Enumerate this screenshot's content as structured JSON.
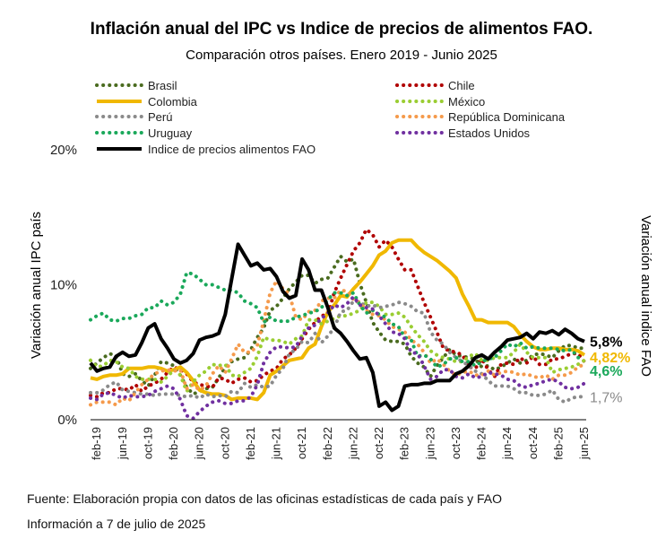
{
  "chart_data": {
    "type": "line",
    "title": "Inflación anual del IPC vs Indice de precios de alimentos FAO.",
    "subtitle": "Comparación otros países. Enero 2019 - Junio 2025",
    "ylabel_left": "Variación anual IPC país",
    "ylabel_right": "Variación anual indice FAO",
    "y_ticks": [
      "0%",
      "10%",
      "20%"
    ],
    "ylim": [
      0,
      20
    ],
    "x_tick_labels": [
      "feb-19",
      "jun-19",
      "oct-19",
      "feb-20",
      "jun-20",
      "oct-20",
      "feb-21",
      "jun-21",
      "oct-21",
      "feb-22",
      "jun-22",
      "oct-22",
      "feb-23",
      "jun-23",
      "oct-23",
      "feb-24",
      "jun-24",
      "oct-24",
      "feb-25",
      "jun-25"
    ],
    "x_start": "2019-01",
    "x_end": "2025-06",
    "grid": false,
    "legend_position": "top",
    "series": [
      {
        "name": "Brasil",
        "color": "#4a6b1f",
        "style": "dotted",
        "end_label": "",
        "values": [
          3.8,
          4.2,
          4.6,
          4.9,
          4.7,
          3.4,
          3.2,
          3.4,
          2.9,
          2.5,
          3.3,
          4.3,
          4.2,
          4.0,
          3.3,
          2.4,
          1.9,
          2.1,
          2.3,
          2.4,
          3.1,
          3.9,
          4.3,
          4.5,
          4.6,
          5.2,
          6.1,
          6.8,
          8.1,
          8.4,
          9.0,
          9.7,
          10.2,
          10.7,
          10.7,
          10.1,
          10.4,
          10.5,
          11.3,
          12.1,
          11.7,
          11.9,
          10.1,
          8.7,
          7.2,
          6.5,
          5.9,
          5.8,
          5.8,
          5.6,
          4.7,
          4.2,
          3.9,
          3.2,
          4.0,
          4.6,
          5.2,
          4.8,
          4.7,
          4.6,
          4.5,
          3.9,
          4.0,
          3.7,
          3.9,
          4.2,
          4.5,
          4.2,
          4.4,
          4.8,
          4.9,
          4.8,
          4.6,
          5.1,
          5.5,
          5.5,
          5.3,
          5.3
        ]
      },
      {
        "name": "Chile",
        "color": "#b00000",
        "style": "dotted",
        "end_label": "",
        "values": [
          1.8,
          1.7,
          2.0,
          2.0,
          2.3,
          2.3,
          2.2,
          2.6,
          2.1,
          2.5,
          2.7,
          3.0,
          3.5,
          3.9,
          3.7,
          3.4,
          2.8,
          2.6,
          2.5,
          2.4,
          3.1,
          3.0,
          2.7,
          3.0,
          3.1,
          2.8,
          2.9,
          3.3,
          3.6,
          3.8,
          4.5,
          4.8,
          5.3,
          6.0,
          6.7,
          7.2,
          7.7,
          7.8,
          9.4,
          10.5,
          11.5,
          12.5,
          13.1,
          14.1,
          13.7,
          12.8,
          13.3,
          12.8,
          11.9,
          11.1,
          11.1,
          9.9,
          8.7,
          7.6,
          6.5,
          5.3,
          5.1,
          5.0,
          4.8,
          3.9,
          3.8,
          4.5,
          3.7,
          3.2,
          4.1,
          4.2,
          4.1,
          4.6,
          4.2,
          4.7,
          4.1,
          4.1,
          4.5,
          4.5,
          4.7,
          4.9,
          4.9,
          4.3
        ]
      },
      {
        "name": "Colombia",
        "color": "#f0b800",
        "style": "solid",
        "end_label": "4,82%",
        "values": [
          3.1,
          3.0,
          3.2,
          3.3,
          3.3,
          3.4,
          3.8,
          3.8,
          3.8,
          3.9,
          3.9,
          3.8,
          3.6,
          3.7,
          3.9,
          3.5,
          2.9,
          2.2,
          2.0,
          1.9,
          1.9,
          1.8,
          1.5,
          1.6,
          1.6,
          1.6,
          1.5,
          2.0,
          3.3,
          3.6,
          4.0,
          4.4,
          4.5,
          4.6,
          5.3,
          5.6,
          6.9,
          8.0,
          8.5,
          9.2,
          9.1,
          9.7,
          10.2,
          10.8,
          11.4,
          12.2,
          12.5,
          13.1,
          13.3,
          13.3,
          13.3,
          12.8,
          12.4,
          12.1,
          11.8,
          11.4,
          11.0,
          10.5,
          9.3,
          8.4,
          7.4,
          7.4,
          7.2,
          7.2,
          7.2,
          7.2,
          6.9,
          6.3,
          5.8,
          5.4,
          5.2,
          5.2,
          5.3,
          5.3,
          5.2,
          5.2,
          5.1,
          4.8
        ]
      },
      {
        "name": "México",
        "color": "#9acd32",
        "style": "dotted",
        "end_label": "",
        "values": [
          4.4,
          3.9,
          4.0,
          4.4,
          4.3,
          3.9,
          3.8,
          3.2,
          3.0,
          3.0,
          3.0,
          2.8,
          3.2,
          3.7,
          3.3,
          2.1,
          2.8,
          3.3,
          3.6,
          4.1,
          4.0,
          4.1,
          3.3,
          3.2,
          3.5,
          3.8,
          4.7,
          6.1,
          5.9,
          5.9,
          5.8,
          5.6,
          6.0,
          6.2,
          7.4,
          7.4,
          7.1,
          7.3,
          7.5,
          7.7,
          7.7,
          7.9,
          8.1,
          8.7,
          8.7,
          8.4,
          7.8,
          7.8,
          7.9,
          7.6,
          6.9,
          6.3,
          5.8,
          5.1,
          4.8,
          4.6,
          4.5,
          4.3,
          4.3,
          4.7,
          4.9,
          4.4,
          4.4,
          4.6,
          4.6,
          4.6,
          5.0,
          5.6,
          5.0,
          4.6,
          4.6,
          4.6,
          3.5,
          3.7,
          3.8,
          3.9,
          4.1,
          4.4
        ]
      },
      {
        "name": "Perú",
        "color": "#8a8a8a",
        "style": "dotted",
        "end_label": "1,7%",
        "values": [
          2.0,
          2.0,
          2.2,
          2.6,
          2.8,
          2.2,
          2.1,
          2.0,
          1.9,
          1.9,
          1.8,
          1.9,
          1.9,
          1.9,
          1.8,
          1.7,
          1.8,
          1.6,
          1.9,
          1.7,
          1.8,
          1.7,
          2.1,
          2.0,
          2.7,
          2.4,
          2.6,
          2.4,
          2.5,
          3.3,
          3.8,
          4.9,
          5.2,
          5.8,
          5.7,
          6.4,
          5.7,
          6.2,
          6.8,
          8.0,
          8.1,
          8.8,
          8.7,
          8.4,
          8.5,
          8.3,
          8.4,
          8.5,
          8.7,
          8.6,
          8.4,
          8.0,
          7.9,
          6.5,
          5.9,
          5.6,
          5.0,
          4.6,
          4.3,
          4.0,
          3.6,
          3.4,
          2.9,
          2.5,
          2.5,
          2.5,
          2.3,
          2.0,
          2.0,
          1.8,
          1.8,
          1.9,
          2.2,
          1.5,
          1.3,
          1.6,
          1.7,
          1.7
        ]
      },
      {
        "name": "República Dominicana",
        "color": "#f59a4b",
        "style": "dotted",
        "end_label": "",
        "values": [
          1.1,
          1.3,
          1.3,
          1.3,
          1.1,
          1.6,
          1.4,
          2.0,
          2.6,
          3.0,
          3.4,
          3.6,
          3.7,
          3.6,
          3.7,
          2.3,
          2.6,
          2.2,
          2.5,
          3.4,
          4.0,
          3.5,
          4.5,
          5.6,
          5.0,
          5.0,
          5.5,
          7.3,
          9.4,
          10.3,
          9.7,
          9.3,
          7.6,
          7.4,
          8.0,
          8.1,
          8.8,
          9.0,
          9.0,
          9.6,
          9.5,
          8.9,
          8.7,
          8.1,
          7.8,
          7.7,
          7.4,
          6.9,
          6.7,
          6.5,
          5.9,
          5.6,
          5.0,
          4.2,
          4.5,
          4.1,
          3.6,
          3.3,
          3.5,
          3.6,
          3.3,
          3.3,
          3.6,
          3.3,
          3.5,
          3.6,
          3.5,
          3.3,
          3.4,
          3.2,
          3.1,
          3.3,
          3.0,
          3.3,
          3.3,
          3.5,
          3.9,
          4.1
        ]
      },
      {
        "name": "Uruguay",
        "color": "#1aa85a",
        "style": "dotted",
        "end_label": "4,6%",
        "values": [
          7.4,
          7.7,
          7.9,
          7.4,
          7.3,
          7.5,
          7.5,
          7.7,
          7.8,
          8.3,
          8.3,
          8.8,
          8.5,
          8.7,
          9.3,
          10.9,
          10.8,
          10.4,
          10.0,
          10.0,
          9.8,
          9.6,
          9.6,
          9.4,
          8.8,
          8.6,
          8.3,
          7.2,
          7.6,
          7.3,
          7.3,
          7.3,
          7.6,
          7.7,
          7.9,
          8.0,
          8.3,
          8.9,
          9.4,
          9.4,
          9.2,
          9.4,
          8.5,
          7.9,
          8.1,
          7.8,
          7.6,
          7.1,
          6.9,
          6.1,
          5.9,
          4.7,
          4.8,
          4.5,
          3.9,
          4.1,
          4.5,
          4.6,
          4.3,
          4.3,
          4.0,
          4.3,
          4.5,
          4.6,
          5.1,
          5.6,
          5.4,
          5.7,
          5.3,
          5.4,
          5.3,
          5.3,
          5.3,
          5.2,
          5.1,
          5.2,
          4.6,
          4.6
        ]
      },
      {
        "name": "Estados Unidos",
        "color": "#7030a0",
        "style": "dotted",
        "end_label": "",
        "values": [
          1.6,
          1.5,
          1.9,
          2.0,
          1.8,
          1.6,
          1.8,
          1.7,
          1.7,
          1.8,
          2.1,
          2.3,
          2.5,
          2.3,
          1.5,
          0.3,
          0.1,
          0.6,
          1.0,
          1.3,
          1.4,
          1.2,
          1.2,
          1.4,
          1.4,
          1.7,
          2.6,
          4.2,
          5.0,
          5.4,
          5.4,
          5.3,
          5.4,
          6.2,
          6.8,
          7.0,
          7.5,
          7.9,
          8.5,
          8.3,
          8.6,
          9.1,
          8.5,
          8.3,
          8.2,
          7.7,
          7.1,
          6.5,
          6.4,
          6.0,
          5.0,
          4.9,
          4.0,
          3.0,
          3.2,
          3.7,
          3.7,
          3.2,
          3.1,
          3.4,
          3.1,
          3.2,
          3.5,
          3.4,
          3.3,
          3.0,
          2.9,
          2.5,
          2.4,
          2.6,
          2.7,
          2.9,
          3.0,
          2.8,
          2.4,
          2.3,
          2.4,
          2.7
        ]
      },
      {
        "name": "Indice de precios alimentos FAO",
        "color": "#000000",
        "style": "solid",
        "end_label": "5,8%",
        "values": [
          4.2,
          3.6,
          3.8,
          3.9,
          4.7,
          5.0,
          4.7,
          4.8,
          5.7,
          6.8,
          7.1,
          6.0,
          5.3,
          4.5,
          4.2,
          4.4,
          4.9,
          5.9,
          6.1,
          6.2,
          6.4,
          7.8,
          10.4,
          13.0,
          12.2,
          11.4,
          11.6,
          11.1,
          11.2,
          10.6,
          9.5,
          9.0,
          9.2,
          11.9,
          11.1,
          9.6,
          9.6,
          8.3,
          6.8,
          6.4,
          5.8,
          5.1,
          4.5,
          4.6,
          3.5,
          1.0,
          1.3,
          0.7,
          1.0,
          2.5,
          2.6,
          2.6,
          2.7,
          2.7,
          2.9,
          2.9,
          2.9,
          3.4,
          3.6,
          4.0,
          4.6,
          4.8,
          4.5,
          5.0,
          5.4,
          5.9,
          6.0,
          6.1,
          6.4,
          6.0,
          6.5,
          6.4,
          6.6,
          6.3,
          6.7,
          6.4,
          6.0,
          5.8
        ]
      }
    ]
  },
  "footer": {
    "source": "Fuente: Elaboración propia con datos de las oficinas estadísticas de cada país y FAO",
    "date": "Información a 7 de julio de 2025"
  }
}
